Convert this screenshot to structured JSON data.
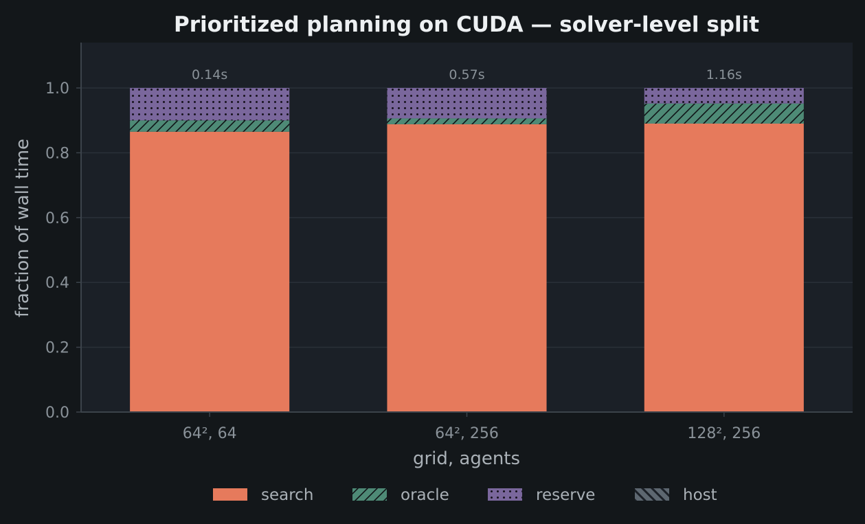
{
  "colors": {
    "figure_bg": "#13171a",
    "plot_bg": "#1b2027",
    "grid": "#2a3038",
    "axis": "#3c434b",
    "tick_text": "#8a9299",
    "label_text": "#aab1b7",
    "title_text": "#edf0f2",
    "search": "#e67a5c",
    "oracle": "#4e8a76",
    "reserve": "#7a679c",
    "host": "#5d6770"
  },
  "chart_data": {
    "type": "bar",
    "stacked": true,
    "title": "Prioritized planning on CUDA — solver-level split",
    "xlabel": "grid, agents",
    "ylabel": "fraction of wall time",
    "categories": [
      "64², 64",
      "64², 256",
      "128², 256"
    ],
    "series": [
      {
        "name": "search",
        "values": [
          0.865,
          0.888,
          0.89
        ],
        "pattern": "solid",
        "color_key": "search"
      },
      {
        "name": "oracle",
        "values": [
          0.035,
          0.018,
          0.062
        ],
        "pattern": "diag",
        "color_key": "oracle"
      },
      {
        "name": "reserve",
        "values": [
          0.1,
          0.094,
          0.048
        ],
        "pattern": "dots",
        "color_key": "reserve"
      },
      {
        "name": "host",
        "values": [
          0,
          0,
          0
        ],
        "pattern": "backdiag",
        "color_key": "host"
      }
    ],
    "bar_labels": [
      "0.14s",
      "0.57s",
      "1.16s"
    ],
    "ylim": [
      0,
      1.14
    ],
    "yticks": [
      0.0,
      0.2,
      0.4,
      0.6,
      0.8,
      1.0
    ],
    "ytick_labels": [
      "0.0",
      "0.2",
      "0.4",
      "0.6",
      "0.8",
      "1.0"
    ],
    "grid": true,
    "legend_position": "bottom-center"
  }
}
